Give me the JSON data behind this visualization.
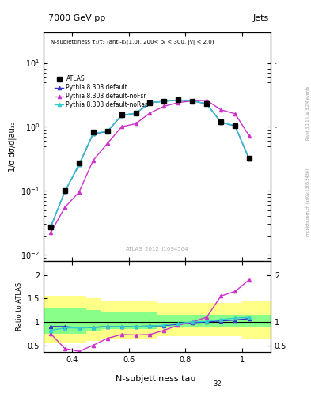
{
  "title_left": "7000 GeV pp",
  "title_right": "Jets",
  "watermark": "ATLAS_2012_I1094564",
  "right_label": "Rivet 3.1.10, >= 3.2M events",
  "right_label2": "mcplots.cern.ch [arXiv:1306.3436]",
  "atlas_x": [
    0.325,
    0.375,
    0.425,
    0.475,
    0.525,
    0.575,
    0.625,
    0.675,
    0.725,
    0.775,
    0.825,
    0.875,
    0.925,
    0.975,
    1.025
  ],
  "atlas_y": [
    0.027,
    0.1,
    0.27,
    0.82,
    0.85,
    1.55,
    1.65,
    2.4,
    2.55,
    2.65,
    2.55,
    2.3,
    1.2,
    1.05,
    0.32
  ],
  "py_default_x": [
    0.325,
    0.375,
    0.425,
    0.475,
    0.525,
    0.575,
    0.625,
    0.675,
    0.725,
    0.775,
    0.825,
    0.875,
    0.925,
    0.975,
    1.025
  ],
  "py_default_y": [
    0.027,
    0.097,
    0.255,
    0.78,
    0.84,
    1.52,
    1.63,
    2.38,
    2.52,
    2.62,
    2.55,
    2.28,
    1.18,
    1.03,
    0.31
  ],
  "py_nofsr_x": [
    0.325,
    0.375,
    0.425,
    0.475,
    0.525,
    0.575,
    0.625,
    0.675,
    0.725,
    0.775,
    0.825,
    0.875,
    0.925,
    0.975,
    1.025
  ],
  "py_nofsr_y": [
    0.022,
    0.055,
    0.095,
    0.3,
    0.55,
    1.0,
    1.12,
    1.65,
    2.1,
    2.4,
    2.55,
    2.6,
    1.85,
    1.6,
    0.72
  ],
  "py_norap_x": [
    0.325,
    0.375,
    0.425,
    0.475,
    0.525,
    0.575,
    0.625,
    0.675,
    0.725,
    0.775,
    0.825,
    0.875,
    0.925,
    0.975,
    1.025
  ],
  "py_norap_y": [
    0.027,
    0.098,
    0.26,
    0.79,
    0.85,
    1.52,
    1.63,
    2.38,
    2.52,
    2.63,
    2.56,
    2.29,
    1.19,
    1.04,
    0.32
  ],
  "color_default": "#3333cc",
  "color_nofsr": "#cc33cc",
  "color_norap": "#33cccc",
  "color_atlas": "#000000",
  "ratio_x": [
    0.325,
    0.375,
    0.425,
    0.475,
    0.525,
    0.575,
    0.625,
    0.675,
    0.725,
    0.775,
    0.825,
    0.875,
    0.925,
    0.975,
    1.025
  ],
  "ratio_default_y": [
    0.9,
    0.9,
    0.87,
    0.88,
    0.9,
    0.9,
    0.9,
    0.91,
    0.92,
    0.95,
    0.98,
    1.0,
    1.02,
    1.04,
    1.07
  ],
  "ratio_nofsr_y": [
    0.75,
    0.43,
    0.37,
    0.5,
    0.65,
    0.73,
    0.72,
    0.73,
    0.82,
    0.93,
    1.0,
    1.1,
    1.55,
    1.65,
    1.9
  ],
  "ratio_norap_y": [
    0.82,
    0.87,
    0.87,
    0.88,
    0.9,
    0.9,
    0.9,
    0.91,
    0.93,
    0.97,
    1.0,
    1.01,
    1.05,
    1.08,
    1.1
  ],
  "band_x_edges": [
    0.3,
    0.35,
    0.4,
    0.45,
    0.5,
    0.55,
    0.6,
    0.65,
    0.7,
    0.75,
    0.8,
    0.85,
    0.9,
    0.95,
    1.0,
    1.05,
    1.1
  ],
  "band_green_lo": [
    0.75,
    0.75,
    0.75,
    0.8,
    0.85,
    0.85,
    0.85,
    0.85,
    0.9,
    0.9,
    0.9,
    0.9,
    0.9,
    0.9,
    0.9,
    0.9
  ],
  "band_green_hi": [
    1.3,
    1.3,
    1.3,
    1.25,
    1.2,
    1.2,
    1.2,
    1.2,
    1.15,
    1.15,
    1.15,
    1.15,
    1.15,
    1.15,
    1.15,
    1.15
  ],
  "band_yellow_lo": [
    0.55,
    0.55,
    0.55,
    0.6,
    0.65,
    0.65,
    0.65,
    0.65,
    0.7,
    0.7,
    0.7,
    0.7,
    0.7,
    0.7,
    0.65,
    0.65
  ],
  "band_yellow_hi": [
    1.55,
    1.55,
    1.55,
    1.5,
    1.45,
    1.45,
    1.45,
    1.45,
    1.4,
    1.4,
    1.4,
    1.4,
    1.4,
    1.4,
    1.45,
    1.45
  ],
  "ylim_main": [
    0.008,
    30
  ],
  "ylim_ratio": [
    0.35,
    2.3
  ],
  "xlim": [
    0.3,
    1.1
  ]
}
